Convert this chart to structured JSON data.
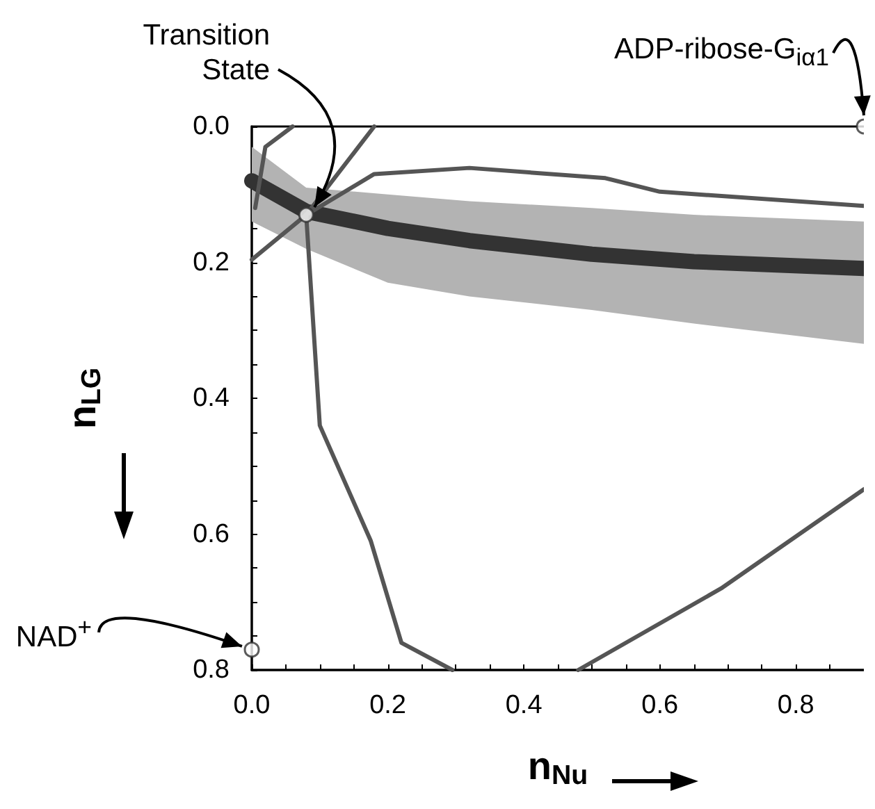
{
  "chart_data": {
    "type": "line",
    "xlabel": "n$_{Nu}$",
    "ylabel": "n$_{LG}$",
    "xlim": [
      0,
      0.9
    ],
    "ylim": [
      0.8,
      0
    ],
    "xticks": [
      {
        "value": 0,
        "label": "0.0"
      },
      {
        "value": 0.05,
        "label": null
      },
      {
        "value": 0.1,
        "label": null
      },
      {
        "value": 0.15,
        "label": null
      },
      0.2,
      {
        "value": 0.25,
        "label": null
      },
      {
        "value": 0.3,
        "label": null
      },
      {
        "value": 0.35,
        "label": null
      },
      0.4,
      {
        "value": 0.45,
        "label": null
      },
      {
        "value": 0.5,
        "label": null
      },
      {
        "value": 0.55,
        "label": null
      },
      0.6,
      {
        "value": 0.65,
        "label": null
      },
      {
        "value": 0.7,
        "label": null
      },
      {
        "value": 0.75,
        "label": null
      },
      0.8,
      {
        "value": 0.85,
        "label": null
      },
      {
        "value": 0.9,
        "label": null
      }
    ],
    "yticks": [
      {
        "value": 0,
        "label": "0.0"
      },
      {
        "value": 0.05,
        "label": null
      },
      {
        "value": 0.1,
        "label": null
      },
      {
        "value": 0.15,
        "label": null
      },
      0.2,
      {
        "value": 0.25,
        "label": null
      },
      {
        "value": 0.3,
        "label": null
      },
      {
        "value": 0.35,
        "label": null
      },
      0.4,
      {
        "value": 0.45,
        "label": null
      },
      {
        "value": 0.5,
        "label": null
      },
      {
        "value": 0.55,
        "label": null
      },
      0.6,
      {
        "value": 0.65,
        "label": null
      },
      {
        "value": 0.7,
        "label": null
      },
      {
        "value": 0.75,
        "label": null
      },
      0.8
    ],
    "marker": "none",
    "line_style": "solid",
    "series": [
      {
        "color": "#333333",
        "x": [
          0,
          0.08,
          0.2,
          0.32,
          0.5,
          0.65,
          0.9
        ],
        "values": [
          0.08,
          0.125,
          0.15,
          0.168,
          0.188,
          0.199,
          0.209
        ],
        "lower": [
          0.03,
          0.09,
          0.1,
          0.11,
          0.12,
          0.13,
          0.14
        ],
        "upper": [
          0.14,
          0.18,
          0.23,
          0.25,
          0.27,
          0.29,
          0.32
        ]
      },
      {
        "color": "#555555",
        "x": [
          0.08,
          0.18,
          0.32,
          0.52,
          0.6,
          0.9
        ],
        "values": [
          0.13,
          0.07,
          0.061,
          0.076,
          0.096,
          0.117
        ]
      },
      {
        "color": "#555555",
        "x": [
          0,
          0.08,
          0.18
        ],
        "values": [
          0.196,
          0.13,
          0
        ]
      },
      {
        "color": "#555555",
        "x": [
          0.005,
          0.02,
          0.06
        ],
        "values": [
          0.12,
          0.03,
          0
        ]
      },
      {
        "color": "#555555",
        "x": [
          0.08,
          0.1,
          0.175,
          0.22,
          0.295
        ],
        "values": [
          0.13,
          0.44,
          0.61,
          0.76,
          0.8
        ]
      },
      {
        "color": "#555555",
        "x": [
          0.48,
          0.69,
          0.9
        ],
        "values": [
          0.8,
          0.68,
          0.534
        ]
      },
      {
        "type": "scatter",
        "marker": "circle",
        "color": "#333333",
        "x": [
          0,
          0.08,
          0.9
        ],
        "values": [
          0.77,
          0.13,
          0
        ]
      }
    ],
    "annotations": [
      {
        "text": "Transition State",
        "x": 0.08,
        "y": 0.13
      },
      {
        "text": "NAD$^{+}$",
        "x": 0,
        "y": 0.77
      },
      {
        "text": "ADP-ribose-G$_{iα1}$",
        "x": 0.9,
        "y": 0
      }
    ]
  }
}
